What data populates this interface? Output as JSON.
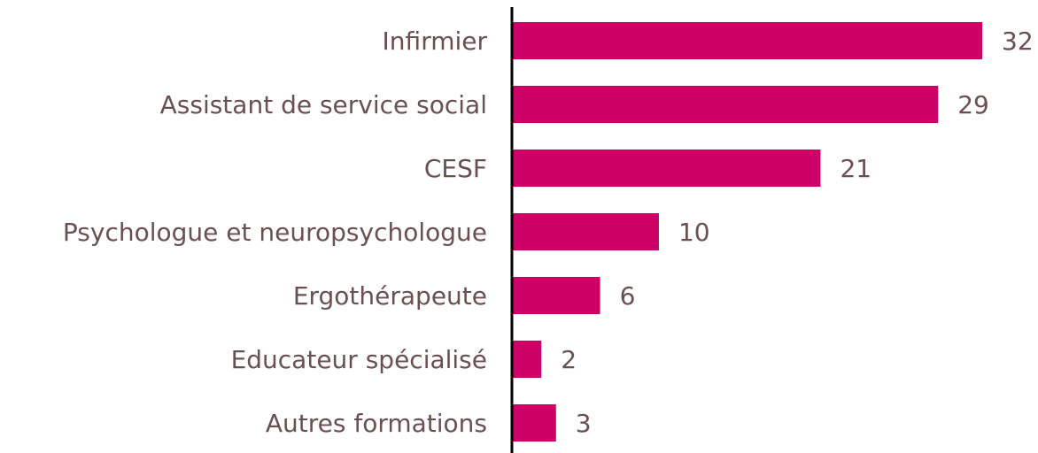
{
  "chart_data": {
    "type": "bar",
    "orientation": "horizontal",
    "categories": [
      "Infirmier",
      "Assistant de service social",
      "CESF",
      "Psychologue et neuropsychologue",
      "Ergothérapeute",
      "Educateur spécialisé",
      "Autres formations"
    ],
    "values": [
      32,
      29,
      21,
      10,
      6,
      2,
      3
    ],
    "color": "#cc0066"
  }
}
